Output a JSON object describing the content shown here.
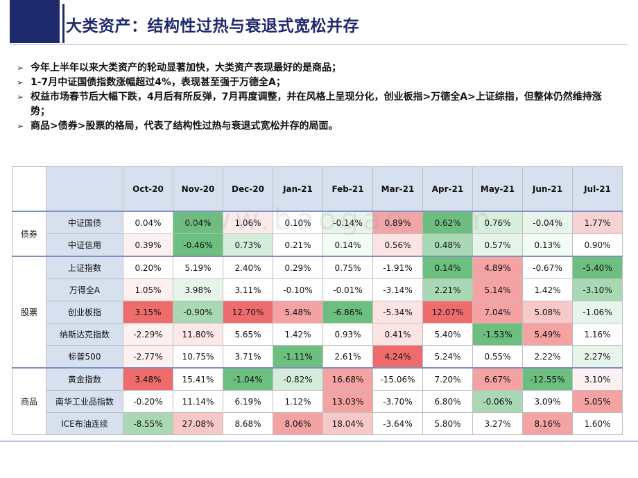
{
  "page": {
    "title": "大类资产：结构性过热与衰退式宽松并存",
    "bullets": [
      "今年上半年以来大类资产的轮动显著加快，大类资产表现最好的是商品；",
      "1-7月中证国债指数涨幅超过4%，表现甚至强于万德全A；",
      "权益市场春节后大幅下跌，4月后有所反弹，7月再度调整，并在风格上呈现分化，创业板指>万德全A>上证综指，但整体仍然维持涨势；",
      "商品>债券>股票的格局，代表了结构性过热与衰退式宽松并存的局面。"
    ],
    "watermark": "www.baogao.com"
  },
  "chart_data": {
    "type": "table",
    "columns": [
      "Oct-20",
      "Nov-20",
      "Dec-20",
      "Jan-21",
      "Feb-21",
      "Mar-21",
      "Apr-21",
      "May-21",
      "Jun-21",
      "Jul-21"
    ],
    "groups": [
      {
        "name": "债券",
        "rows": [
          {
            "label": "中证国债",
            "values": [
              "0.04%",
              "0.04%",
              "1.06%",
              "0.10%",
              "-0.14%",
              "0.89%",
              "0.62%",
              "0.76%",
              "-0.04%",
              "1.77%"
            ]
          },
          {
            "label": "中证信用",
            "values": [
              "0.39%",
              "-0.46%",
              "0.73%",
              "0.21%",
              "0.14%",
              "0.56%",
              "0.48%",
              "0.57%",
              "0.13%",
              "0.90%"
            ]
          }
        ]
      },
      {
        "name": "股票",
        "rows": [
          {
            "label": "上证指数",
            "values": [
              "0.20%",
              "5.19%",
              "2.40%",
              "0.29%",
              "0.75%",
              "-1.91%",
              "0.14%",
              "4.89%",
              "-0.67%",
              "-5.40%"
            ]
          },
          {
            "label": "万得全A",
            "values": [
              "1.05%",
              "3.98%",
              "3.11%",
              "-0.10%",
              "-0.01%",
              "-3.14%",
              "2.21%",
              "5.14%",
              "1.42%",
              "-3.10%"
            ]
          },
          {
            "label": "创业板指",
            "values": [
              "3.15%",
              "-0.90%",
              "12.70%",
              "5.48%",
              "-6.86%",
              "-5.34%",
              "12.07%",
              "7.04%",
              "5.08%",
              "-1.06%"
            ]
          },
          {
            "label": "纳斯达克指数",
            "values": [
              "-2.29%",
              "11.80%",
              "5.65%",
              "1.42%",
              "0.93%",
              "0.41%",
              "5.40%",
              "-1.53%",
              "5.49%",
              "1.16%"
            ]
          },
          {
            "label": "标普500",
            "values": [
              "-2.77%",
              "10.75%",
              "3.71%",
              "-1.11%",
              "2.61%",
              "4.24%",
              "5.24%",
              "0.55%",
              "2.22%",
              "2.27%"
            ]
          }
        ]
      },
      {
        "name": "商品",
        "rows": [
          {
            "label": "黄金指数",
            "values": [
              "3.48%",
              "15.41%",
              "-1.04%",
              "-0.82%",
              "16.68%",
              "-15.06%",
              "7.20%",
              "6.67%",
              "-12.55%",
              "3.10%"
            ]
          },
          {
            "label": "南华工业品指数",
            "values": [
              "-0.20%",
              "11.14%",
              "6.19%",
              "1.12%",
              "13.03%",
              "-3.70%",
              "6.80%",
              "-0.06%",
              "3.09%",
              "5.05%"
            ]
          },
          {
            "label": "ICE布油连续",
            "values": [
              "-8.55%",
              "27.08%",
              "8.68%",
              "8.06%",
              "18.04%",
              "-3.64%",
              "5.80%",
              "3.27%",
              "8.16%",
              "1.60%"
            ]
          }
        ]
      }
    ],
    "cell_colors": [
      [
        "#ffffff",
        "#6cbf7f",
        "#fbeaea",
        "#ffffff",
        "#e7f4ea",
        "#f0a6a6",
        "#6cbf7f",
        "#d8eedd",
        "#e7f4ea",
        "#f6d2d2"
      ],
      [
        "#fdf0f0",
        "#6cbf7f",
        "#d4ecd9",
        "#ffffff",
        "#f3fbf5",
        "#fbe3e3",
        "#a9d9b4",
        "#e7f4ea",
        "#f3fbf5",
        "#ffffff"
      ],
      [
        "#ffffff",
        "#ffffff",
        "#ffffff",
        "#ffffff",
        "#ffffff",
        "#ffffff",
        "#6cbf7f",
        "#f4a2a2",
        "#ffffff",
        "#6cbf7f"
      ],
      [
        "#fdf0f0",
        "#e7f4ea",
        "#ffffff",
        "#ffffff",
        "#ffffff",
        "#ffffff",
        "#a9d9b4",
        "#f4a2a2",
        "#ffffff",
        "#a9d9b4"
      ],
      [
        "#ee6c6c",
        "#a9d9b4",
        "#ee6c6c",
        "#f4a2a2",
        "#6cbf7f",
        "#fbe3e3",
        "#ee6c6c",
        "#f4a2a2",
        "#f8c8c8",
        "#e7f4ea"
      ],
      [
        "#fdf0f0",
        "#fde8e8",
        "#ffffff",
        "#ffffff",
        "#ffffff",
        "#fbe3e3",
        "#ffffff",
        "#6cbf7f",
        "#f4a2a2",
        "#ffffff"
      ],
      [
        "#fdf0f0",
        "#ffffff",
        "#ffffff",
        "#6cbf7f",
        "#ffffff",
        "#ee6c6c",
        "#ffffff",
        "#ffffff",
        "#ffffff",
        "#e7f4ea"
      ],
      [
        "#ee6c6c",
        "#ffffff",
        "#6cbf7f",
        "#d4ecd9",
        "#f4a2a2",
        "#ffffff",
        "#ffffff",
        "#f4a2a2",
        "#6cbf7f",
        "#fdf0f0"
      ],
      [
        "#ffffff",
        "#ffffff",
        "#ffffff",
        "#ffffff",
        "#f4a2a2",
        "#ffffff",
        "#ffffff",
        "#a9d9b4",
        "#ffffff",
        "#f4a2a2"
      ],
      [
        "#a9d9b4",
        "#f8c8c8",
        "#ffffff",
        "#f4a2a2",
        "#f8c8c8",
        "#ffffff",
        "#ffffff",
        "#ffffff",
        "#f4a2a2",
        "#ffffff"
      ]
    ]
  }
}
